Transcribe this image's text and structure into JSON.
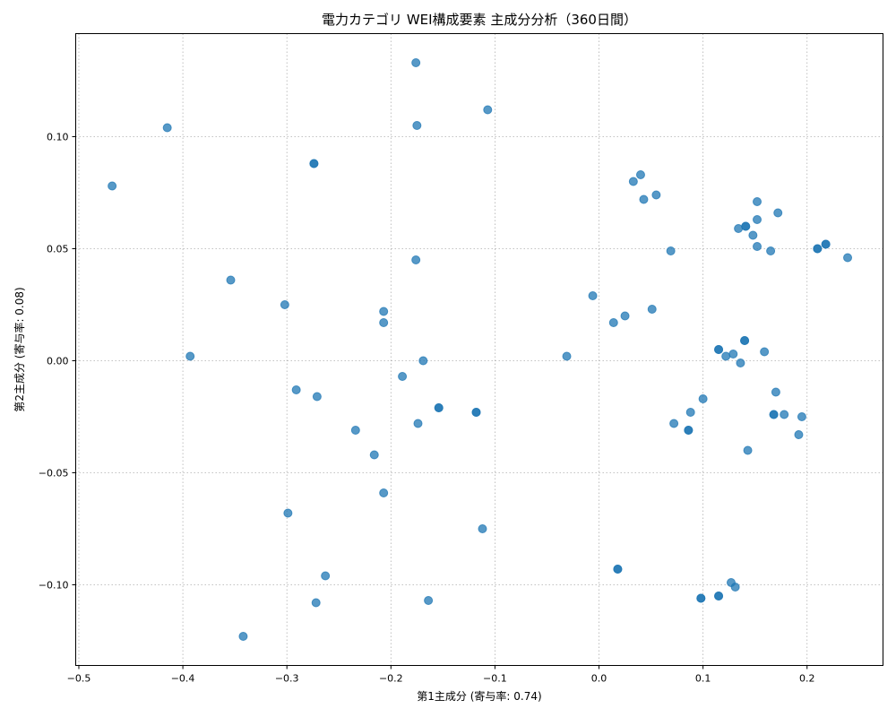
{
  "chart_data": {
    "type": "scatter",
    "title": "電力カテゴリ WEI構成要素 主成分分析（360日間）",
    "xlabel": "第1主成分 (寄与率: 0.74)",
    "ylabel": "第2主成分 (寄与率: 0.08)",
    "xlim": [
      -0.503,
      0.273
    ],
    "ylim": [
      -0.136,
      0.146
    ],
    "xticks": [
      -0.5,
      -0.4,
      -0.3,
      -0.2,
      -0.1,
      0.0,
      0.1,
      0.2
    ],
    "xtick_labels": [
      "−0.5",
      "−0.4",
      "−0.3",
      "−0.2",
      "−0.1",
      "0.0",
      "0.1",
      "0.2"
    ],
    "yticks": [
      -0.1,
      -0.05,
      0.0,
      0.05,
      0.1
    ],
    "ytick_labels": [
      "−0.10",
      "−0.05",
      "0.00",
      "0.05",
      "0.10"
    ],
    "grid": true,
    "color": "#1f77b4",
    "points": [
      {
        "x": -0.468,
        "y": 0.078
      },
      {
        "x": -0.415,
        "y": 0.104
      },
      {
        "x": -0.393,
        "y": 0.002
      },
      {
        "x": -0.354,
        "y": 0.036
      },
      {
        "x": -0.342,
        "y": -0.123
      },
      {
        "x": -0.302,
        "y": 0.025
      },
      {
        "x": -0.299,
        "y": -0.068
      },
      {
        "x": -0.291,
        "y": -0.013
      },
      {
        "x": -0.274,
        "y": 0.088
      },
      {
        "x": -0.274,
        "y": 0.088
      },
      {
        "x": -0.271,
        "y": -0.016
      },
      {
        "x": -0.272,
        "y": -0.108
      },
      {
        "x": -0.263,
        "y": -0.096
      },
      {
        "x": -0.234,
        "y": -0.031
      },
      {
        "x": -0.216,
        "y": -0.042
      },
      {
        "x": -0.207,
        "y": 0.022
      },
      {
        "x": -0.207,
        "y": 0.017
      },
      {
        "x": -0.207,
        "y": -0.059
      },
      {
        "x": -0.189,
        "y": -0.007
      },
      {
        "x": -0.176,
        "y": 0.133
      },
      {
        "x": -0.175,
        "y": 0.105
      },
      {
        "x": -0.176,
        "y": 0.045
      },
      {
        "x": -0.174,
        "y": -0.028
      },
      {
        "x": -0.169,
        "y": 0.0
      },
      {
        "x": -0.164,
        "y": -0.107
      },
      {
        "x": -0.154,
        "y": -0.021
      },
      {
        "x": -0.154,
        "y": -0.021
      },
      {
        "x": -0.118,
        "y": -0.023
      },
      {
        "x": -0.118,
        "y": -0.023
      },
      {
        "x": -0.112,
        "y": -0.075
      },
      {
        "x": -0.107,
        "y": 0.112
      },
      {
        "x": -0.031,
        "y": 0.002
      },
      {
        "x": -0.006,
        "y": 0.029
      },
      {
        "x": 0.014,
        "y": 0.017
      },
      {
        "x": 0.018,
        "y": -0.093
      },
      {
        "x": 0.018,
        "y": -0.093
      },
      {
        "x": 0.025,
        "y": 0.02
      },
      {
        "x": 0.033,
        "y": 0.08
      },
      {
        "x": 0.04,
        "y": 0.083
      },
      {
        "x": 0.043,
        "y": 0.072
      },
      {
        "x": 0.051,
        "y": 0.023
      },
      {
        "x": 0.055,
        "y": 0.074
      },
      {
        "x": 0.069,
        "y": 0.049
      },
      {
        "x": 0.072,
        "y": -0.028
      },
      {
        "x": 0.086,
        "y": -0.031
      },
      {
        "x": 0.086,
        "y": -0.031
      },
      {
        "x": 0.088,
        "y": -0.023
      },
      {
        "x": 0.098,
        "y": -0.106
      },
      {
        "x": 0.098,
        "y": -0.106
      },
      {
        "x": 0.1,
        "y": -0.017
      },
      {
        "x": 0.115,
        "y": 0.005
      },
      {
        "x": 0.115,
        "y": 0.005
      },
      {
        "x": 0.115,
        "y": -0.105
      },
      {
        "x": 0.115,
        "y": -0.105
      },
      {
        "x": 0.122,
        "y": 0.002
      },
      {
        "x": 0.127,
        "y": -0.099
      },
      {
        "x": 0.129,
        "y": 0.003
      },
      {
        "x": 0.131,
        "y": -0.101
      },
      {
        "x": 0.134,
        "y": 0.059
      },
      {
        "x": 0.136,
        "y": -0.001
      },
      {
        "x": 0.14,
        "y": 0.009
      },
      {
        "x": 0.14,
        "y": 0.009
      },
      {
        "x": 0.141,
        "y": 0.06
      },
      {
        "x": 0.141,
        "y": 0.06
      },
      {
        "x": 0.143,
        "y": -0.04
      },
      {
        "x": 0.148,
        "y": 0.056
      },
      {
        "x": 0.152,
        "y": 0.071
      },
      {
        "x": 0.152,
        "y": 0.063
      },
      {
        "x": 0.152,
        "y": 0.051
      },
      {
        "x": 0.159,
        "y": 0.004
      },
      {
        "x": 0.165,
        "y": 0.049
      },
      {
        "x": 0.168,
        "y": -0.024
      },
      {
        "x": 0.168,
        "y": -0.024
      },
      {
        "x": 0.17,
        "y": -0.014
      },
      {
        "x": 0.172,
        "y": 0.066
      },
      {
        "x": 0.178,
        "y": -0.024
      },
      {
        "x": 0.192,
        "y": -0.033
      },
      {
        "x": 0.195,
        "y": -0.025
      },
      {
        "x": 0.21,
        "y": 0.05
      },
      {
        "x": 0.21,
        "y": 0.05
      },
      {
        "x": 0.218,
        "y": 0.052
      },
      {
        "x": 0.218,
        "y": 0.052
      },
      {
        "x": 0.239,
        "y": 0.046
      }
    ]
  }
}
